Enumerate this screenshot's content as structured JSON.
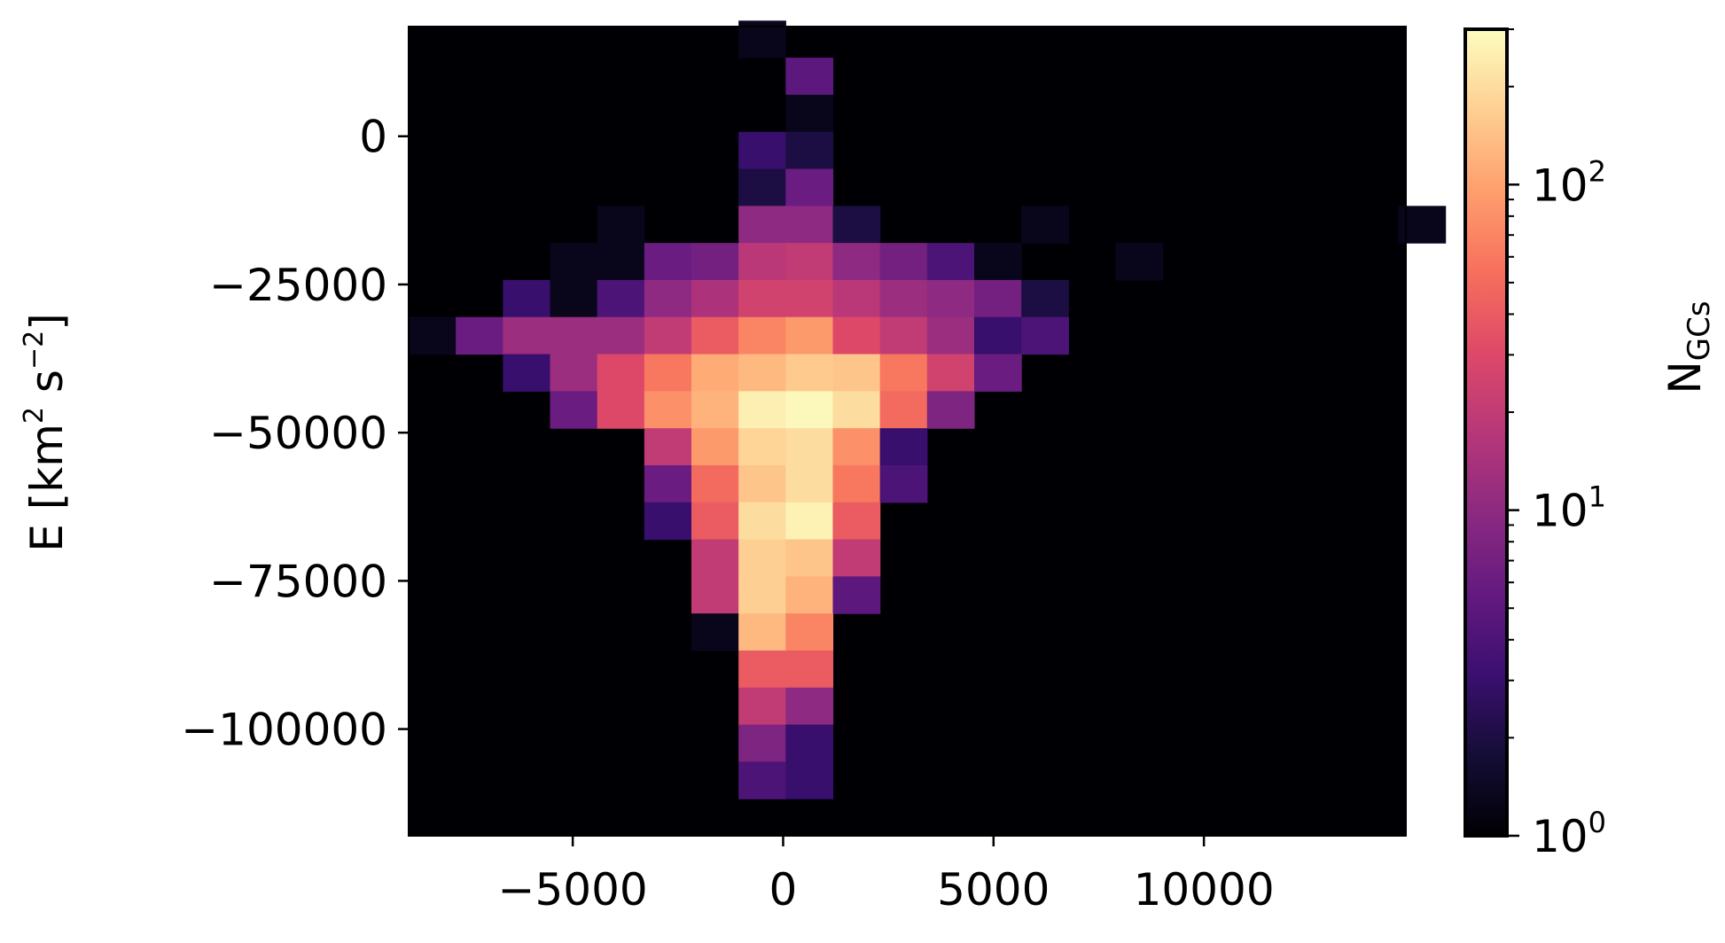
{
  "chart_data": {
    "type": "heatmap",
    "title": "",
    "xlabel": "",
    "ylabel_main": "E [km",
    "ylabel_sup1": "2",
    "ylabel_mid": " s",
    "ylabel_sup2": "−2",
    "ylabel_end": "]",
    "xlim": [
      -8900,
      14800
    ],
    "ylim": [
      -118000,
      18500
    ],
    "background_color": "#000004",
    "x_bin_start": -8900,
    "x_bin_width": 1120,
    "y_bin_start": -118000,
    "y_bin_height": 6250,
    "x_ticks": [
      {
        "value": -5000,
        "label": "−5000"
      },
      {
        "value": 0,
        "label": "0"
      },
      {
        "value": 5000,
        "label": "5000"
      },
      {
        "value": 10000,
        "label": "10000"
      }
    ],
    "y_ticks": [
      {
        "value": 0,
        "label": "0"
      },
      {
        "value": -25000,
        "label": "−25000"
      },
      {
        "value": -50000,
        "label": "−50000"
      },
      {
        "value": -75000,
        "label": "−75000"
      },
      {
        "value": -100000,
        "label": "−100000"
      }
    ],
    "colorbar": {
      "label_main": "N",
      "label_sub": "GCs",
      "scale": "log",
      "range": [
        1,
        300
      ],
      "colormap": "magma",
      "ticks": [
        {
          "value": 1,
          "base": "10",
          "exp": "0"
        },
        {
          "value": 10,
          "base": "10",
          "exp": "1"
        },
        {
          "value": 100,
          "base": "10",
          "exp": "2"
        }
      ]
    },
    "cells": [
      {
        "x": -1,
        "y": 21,
        "count": 1.3
      },
      {
        "x": 0,
        "y": 20,
        "count": 5
      },
      {
        "x": 0,
        "y": 19,
        "count": 1.3
      },
      {
        "x": -1,
        "y": 18,
        "count": 3
      },
      {
        "x": 0,
        "y": 18,
        "count": 2
      },
      {
        "x": -1,
        "y": 17,
        "count": 2
      },
      {
        "x": 0,
        "y": 17,
        "count": 6
      },
      {
        "x": -4,
        "y": 16,
        "count": 1.3
      },
      {
        "x": -1,
        "y": 16,
        "count": 10
      },
      {
        "x": 0,
        "y": 16,
        "count": 10
      },
      {
        "x": 1,
        "y": 16,
        "count": 2
      },
      {
        "x": 5,
        "y": 16,
        "count": 1.3
      },
      {
        "x": 13,
        "y": 16,
        "count": 1.3
      },
      {
        "x": -5,
        "y": 15,
        "count": 1.3
      },
      {
        "x": -4,
        "y": 15,
        "count": 1.3
      },
      {
        "x": -3,
        "y": 15,
        "count": 6
      },
      {
        "x": -2,
        "y": 15,
        "count": 7
      },
      {
        "x": -1,
        "y": 15,
        "count": 18
      },
      {
        "x": 0,
        "y": 15,
        "count": 20
      },
      {
        "x": 1,
        "y": 15,
        "count": 10
      },
      {
        "x": 2,
        "y": 15,
        "count": 7
      },
      {
        "x": 3,
        "y": 15,
        "count": 4
      },
      {
        "x": 4,
        "y": 15,
        "count": 1.3
      },
      {
        "x": 7,
        "y": 15,
        "count": 1.3
      },
      {
        "x": -6,
        "y": 14,
        "count": 3
      },
      {
        "x": -5,
        "y": 14,
        "count": 1.3
      },
      {
        "x": -4,
        "y": 14,
        "count": 4
      },
      {
        "x": -3,
        "y": 14,
        "count": 10
      },
      {
        "x": -2,
        "y": 14,
        "count": 15
      },
      {
        "x": -1,
        "y": 14,
        "count": 25
      },
      {
        "x": 0,
        "y": 14,
        "count": 25
      },
      {
        "x": 1,
        "y": 14,
        "count": 18
      },
      {
        "x": 2,
        "y": 14,
        "count": 12
      },
      {
        "x": 3,
        "y": 14,
        "count": 10
      },
      {
        "x": 4,
        "y": 14,
        "count": 7
      },
      {
        "x": 5,
        "y": 14,
        "count": 2
      },
      {
        "x": -8,
        "y": 13,
        "count": 1.3
      },
      {
        "x": -7,
        "y": 13,
        "count": 6
      },
      {
        "x": -6,
        "y": 13,
        "count": 12
      },
      {
        "x": -5,
        "y": 13,
        "count": 12
      },
      {
        "x": -4,
        "y": 13,
        "count": 12
      },
      {
        "x": -3,
        "y": 13,
        "count": 20
      },
      {
        "x": -2,
        "y": 13,
        "count": 40
      },
      {
        "x": -1,
        "y": 13,
        "count": 70
      },
      {
        "x": 0,
        "y": 13,
        "count": 90
      },
      {
        "x": 1,
        "y": 13,
        "count": 30
      },
      {
        "x": 2,
        "y": 13,
        "count": 20
      },
      {
        "x": 3,
        "y": 13,
        "count": 12
      },
      {
        "x": 4,
        "y": 13,
        "count": 3
      },
      {
        "x": 5,
        "y": 13,
        "count": 4
      },
      {
        "x": -6,
        "y": 12,
        "count": 3
      },
      {
        "x": -5,
        "y": 12,
        "count": 12
      },
      {
        "x": -4,
        "y": 12,
        "count": 30
      },
      {
        "x": -3,
        "y": 12,
        "count": 60
      },
      {
        "x": -2,
        "y": 12,
        "count": 110
      },
      {
        "x": -1,
        "y": 12,
        "count": 130
      },
      {
        "x": 0,
        "y": 12,
        "count": 160
      },
      {
        "x": 1,
        "y": 12,
        "count": 150
      },
      {
        "x": 2,
        "y": 12,
        "count": 60
      },
      {
        "x": 3,
        "y": 12,
        "count": 25
      },
      {
        "x": 4,
        "y": 12,
        "count": 6
      },
      {
        "x": -5,
        "y": 11,
        "count": 6
      },
      {
        "x": -4,
        "y": 11,
        "count": 30
      },
      {
        "x": -3,
        "y": 11,
        "count": 80
      },
      {
        "x": -2,
        "y": 11,
        "count": 120
      },
      {
        "x": -1,
        "y": 11,
        "count": 250
      },
      {
        "x": 0,
        "y": 11,
        "count": 280
      },
      {
        "x": 1,
        "y": 11,
        "count": 200
      },
      {
        "x": 2,
        "y": 11,
        "count": 50
      },
      {
        "x": 3,
        "y": 11,
        "count": 8
      },
      {
        "x": -3,
        "y": 10,
        "count": 20
      },
      {
        "x": -2,
        "y": 10,
        "count": 90
      },
      {
        "x": -1,
        "y": 10,
        "count": 180
      },
      {
        "x": 0,
        "y": 10,
        "count": 200
      },
      {
        "x": 1,
        "y": 10,
        "count": 80
      },
      {
        "x": 2,
        "y": 10,
        "count": 3
      },
      {
        "x": -3,
        "y": 9,
        "count": 6
      },
      {
        "x": -2,
        "y": 9,
        "count": 50
      },
      {
        "x": -1,
        "y": 9,
        "count": 150
      },
      {
        "x": 0,
        "y": 9,
        "count": 200
      },
      {
        "x": 1,
        "y": 9,
        "count": 60
      },
      {
        "x": 2,
        "y": 9,
        "count": 4
      },
      {
        "x": -3,
        "y": 8,
        "count": 3
      },
      {
        "x": -2,
        "y": 8,
        "count": 40
      },
      {
        "x": -1,
        "y": 8,
        "count": 200
      },
      {
        "x": 0,
        "y": 8,
        "count": 260
      },
      {
        "x": 1,
        "y": 8,
        "count": 40
      },
      {
        "x": -2,
        "y": 7,
        "count": 20
      },
      {
        "x": -1,
        "y": 7,
        "count": 170
      },
      {
        "x": 0,
        "y": 7,
        "count": 150
      },
      {
        "x": 1,
        "y": 7,
        "count": 20
      },
      {
        "x": -2,
        "y": 6,
        "count": 20
      },
      {
        "x": -1,
        "y": 6,
        "count": 170
      },
      {
        "x": 0,
        "y": 6,
        "count": 120
      },
      {
        "x": 1,
        "y": 6,
        "count": 5
      },
      {
        "x": -2,
        "y": 5,
        "count": 1.3
      },
      {
        "x": -1,
        "y": 5,
        "count": 130
      },
      {
        "x": 0,
        "y": 5,
        "count": 70
      },
      {
        "x": -1,
        "y": 4,
        "count": 40
      },
      {
        "x": 0,
        "y": 4,
        "count": 40
      },
      {
        "x": -1,
        "y": 3,
        "count": 20
      },
      {
        "x": 0,
        "y": 3,
        "count": 10
      },
      {
        "x": -1,
        "y": 2,
        "count": 8
      },
      {
        "x": 0,
        "y": 2,
        "count": 3
      },
      {
        "x": -1,
        "y": 1,
        "count": 4
      },
      {
        "x": 0,
        "y": 1,
        "count": 3
      }
    ]
  }
}
